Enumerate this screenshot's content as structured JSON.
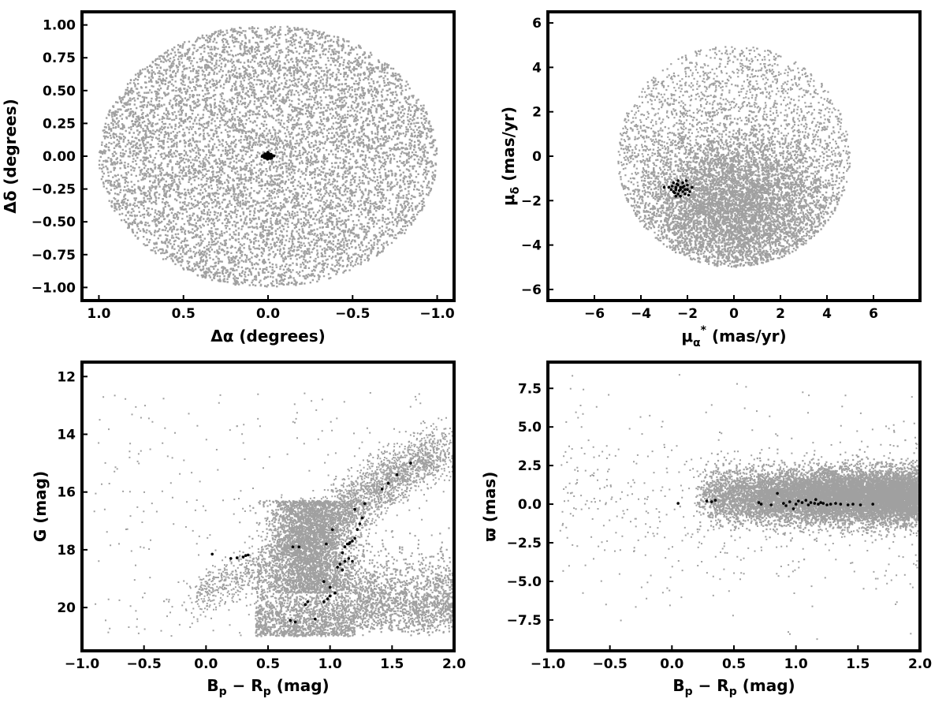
{
  "chart_data": [
    {
      "id": "sky",
      "type": "scatter",
      "xlabel": "Δα (degrees)",
      "ylabel": "Δδ (degrees)",
      "xlim": [
        1.1,
        -1.1
      ],
      "ylim": [
        -1.1,
        1.1
      ],
      "x_reversed": true,
      "xticks": [
        1.0,
        0.5,
        0.0,
        -0.5,
        -1.0
      ],
      "xtick_labels": [
        "1.0",
        "0.5",
        "0.0",
        "−0.5",
        "−1.0"
      ],
      "yticks": [
        1.0,
        0.75,
        0.5,
        0.25,
        0.0,
        -0.25,
        -0.5,
        -0.75,
        -1.0
      ],
      "ytick_labels": [
        "1.00",
        "0.75",
        "0.50",
        "0.25",
        "0.00",
        "−0.25",
        "−0.50",
        "−0.75",
        "−1.00"
      ],
      "series": [
        {
          "color": "#a0a0a0",
          "distribution": "uniform disk",
          "center": [
            0,
            0
          ],
          "radius": 1.0
        },
        {
          "color": "#000000",
          "points": [
            [
              0.0,
              0.0
            ],
            [
              0.01,
              0.005
            ],
            [
              -0.01,
              0.008
            ],
            [
              0.005,
              -0.01
            ],
            [
              -0.008,
              -0.006
            ],
            [
              0.015,
              0.01
            ],
            [
              -0.015,
              0.012
            ],
            [
              0.02,
              -0.005
            ],
            [
              -0.02,
              -0.008
            ],
            [
              0.008,
              0.018
            ],
            [
              -0.005,
              0.02
            ],
            [
              0.012,
              -0.015
            ],
            [
              -0.012,
              -0.018
            ],
            [
              0.025,
              0.002
            ],
            [
              -0.025,
              0.0
            ],
            [
              0.0,
              0.025
            ],
            [
              0.003,
              -0.022
            ],
            [
              0.018,
              0.018
            ],
            [
              -0.018,
              0.015
            ],
            [
              0.022,
              -0.012
            ],
            [
              -0.022,
              -0.014
            ],
            [
              0.03,
              0.005
            ],
            [
              -0.03,
              0.004
            ],
            [
              0.006,
              0.006
            ],
            [
              -0.004,
              -0.003
            ],
            [
              0.01,
              -0.002
            ],
            [
              -0.002,
              0.012
            ],
            [
              0.014,
              0.002
            ],
            [
              -0.014,
              -0.002
            ],
            [
              0.035,
              -0.002
            ],
            [
              -0.035,
              0.002
            ],
            [
              0.001,
              0.03
            ]
          ]
        }
      ]
    },
    {
      "id": "pm",
      "type": "scatter",
      "xlabel": "μα* (mas/yr)",
      "ylabel": "μδ (mas/yr)",
      "xlim": [
        -8,
        8
      ],
      "ylim": [
        -6.5,
        6.5
      ],
      "xticks": [
        -6,
        -4,
        -2,
        0,
        2,
        4,
        6
      ],
      "xtick_labels": [
        "−6",
        "−4",
        "−2",
        "0",
        "2",
        "4",
        "6"
      ],
      "yticks": [
        6,
        4,
        2,
        0,
        -2,
        -4,
        -6
      ],
      "ytick_labels": [
        "6",
        "4",
        "2",
        "0",
        "−2",
        "−4",
        "−6"
      ],
      "series": [
        {
          "color": "#a0a0a0",
          "distribution": "disk centered at (0,0) radius 5, dense toward negative μδ"
        },
        {
          "color": "#000000",
          "points": [
            [
              -2.3,
              -1.5
            ],
            [
              -2.4,
              -1.3
            ],
            [
              -2.2,
              -1.6
            ],
            [
              -2.5,
              -1.4
            ],
            [
              -2.1,
              -1.5
            ],
            [
              -2.6,
              -1.6
            ],
            [
              -2.3,
              -1.8
            ],
            [
              -2.0,
              -1.3
            ],
            [
              -2.4,
              -1.1
            ],
            [
              -2.7,
              -1.5
            ],
            [
              -2.2,
              -1.2
            ],
            [
              -1.9,
              -1.6
            ],
            [
              -2.5,
              -1.8
            ],
            [
              -2.8,
              -1.4
            ],
            [
              -2.3,
              -1.4
            ],
            [
              -2.1,
              -1.7
            ],
            [
              -2.6,
              -1.2
            ],
            [
              -2.0,
              -1.5
            ],
            [
              -2.4,
              -1.7
            ],
            [
              -2.2,
              -1.4
            ],
            [
              -3.0,
              -1.4
            ],
            [
              -1.8,
              -1.4
            ],
            [
              -2.5,
              -1.5
            ],
            [
              -2.35,
              -1.55
            ],
            [
              -2.15,
              -1.35
            ],
            [
              -2.45,
              -1.25
            ],
            [
              -2.05,
              -1.1
            ],
            [
              -2.55,
              -1.65
            ],
            [
              -1.95,
              -1.75
            ],
            [
              -2.65,
              -1.35
            ]
          ]
        }
      ]
    },
    {
      "id": "cmd",
      "type": "scatter",
      "xlabel": "Bp − Rp (mag)",
      "ylabel": "G (mag)",
      "xlim": [
        -1.0,
        2.0
      ],
      "ylim": [
        21.5,
        11.5
      ],
      "y_reversed": true,
      "xticks": [
        -1.0,
        -0.5,
        0.0,
        0.5,
        1.0,
        1.5,
        2.0
      ],
      "xtick_labels": [
        "−1.0",
        "−0.5",
        "0.0",
        "0.5",
        "1.0",
        "1.5",
        "2.0"
      ],
      "yticks": [
        20,
        18,
        16,
        14,
        12
      ],
      "ytick_labels": [
        "20",
        "18",
        "16",
        "14",
        "12"
      ],
      "series": [
        {
          "color": "#a0a0a0",
          "distribution": "field stars, dense band near G=19-21 for Bp-Rp 0.5-2.0, sparse branch to bright mags"
        },
        {
          "color": "#000000",
          "points": [
            [
              0.05,
              18.15
            ],
            [
              0.2,
              18.3
            ],
            [
              0.25,
              18.28
            ],
            [
              0.3,
              18.25
            ],
            [
              0.32,
              18.2
            ],
            [
              0.34,
              18.18
            ],
            [
              0.7,
              17.9
            ],
            [
              0.75,
              17.9
            ],
            [
              0.68,
              20.45
            ],
            [
              0.72,
              20.5
            ],
            [
              0.88,
              20.4
            ],
            [
              0.8,
              19.9
            ],
            [
              0.82,
              19.8
            ],
            [
              0.95,
              19.8
            ],
            [
              0.98,
              19.7
            ],
            [
              1.0,
              19.6
            ],
            [
              1.04,
              19.5
            ],
            [
              0.95,
              19.1
            ],
            [
              1.0,
              19.3
            ],
            [
              1.06,
              18.6
            ],
            [
              1.1,
              18.7
            ],
            [
              1.08,
              18.5
            ],
            [
              1.12,
              18.4
            ],
            [
              1.15,
              18.3
            ],
            [
              1.18,
              18.4
            ],
            [
              1.1,
              18.1
            ],
            [
              1.12,
              17.9
            ],
            [
              1.14,
              17.8
            ],
            [
              1.16,
              17.75
            ],
            [
              1.18,
              17.7
            ],
            [
              1.2,
              17.6
            ],
            [
              1.22,
              17.3
            ],
            [
              1.24,
              17.1
            ],
            [
              1.26,
              16.9
            ],
            [
              1.28,
              16.4
            ],
            [
              1.2,
              16.6
            ],
            [
              1.15,
              17.8
            ],
            [
              1.02,
              17.3
            ],
            [
              0.97,
              17.8
            ],
            [
              1.42,
              15.9
            ],
            [
              1.47,
              15.7
            ],
            [
              1.54,
              15.4
            ],
            [
              1.65,
              15.0
            ]
          ]
        }
      ]
    },
    {
      "id": "parallax",
      "type": "scatter",
      "xlabel": "Bp − Rp (mag)",
      "ylabel": "ϖ (mas)",
      "xlim": [
        -1.0,
        2.0
      ],
      "ylim": [
        -9.5,
        9.2
      ],
      "xticks": [
        -1.0,
        -0.5,
        0.0,
        0.5,
        1.0,
        1.5,
        2.0
      ],
      "xtick_labels": [
        "−1.0",
        "−0.5",
        "0.0",
        "0.5",
        "1.0",
        "1.5",
        "2.0"
      ],
      "yticks": [
        7.5,
        5.0,
        2.5,
        0.0,
        -2.5,
        -5.0,
        -7.5
      ],
      "ytick_labels": [
        "7.5",
        "5.0",
        "2.5",
        "0.0",
        "−2.5",
        "−5.0",
        "−7.5"
      ],
      "series": [
        {
          "color": "#a0a0a0",
          "distribution": "field stars, parallax band centered near 0.5 mas for Bp-Rp 0.3-2.0"
        },
        {
          "color": "#000000",
          "points": [
            [
              0.05,
              0.05
            ],
            [
              0.28,
              0.2
            ],
            [
              0.32,
              0.15
            ],
            [
              0.35,
              0.25
            ],
            [
              0.7,
              0.1
            ],
            [
              0.72,
              0.0
            ],
            [
              0.8,
              -0.05
            ],
            [
              0.85,
              0.7
            ],
            [
              0.9,
              0.05
            ],
            [
              0.92,
              -0.1
            ],
            [
              0.95,
              0.15
            ],
            [
              1.0,
              0.0
            ],
            [
              1.02,
              0.2
            ],
            [
              1.05,
              0.1
            ],
            [
              1.08,
              0.25
            ],
            [
              1.1,
              -0.05
            ],
            [
              1.12,
              0.1
            ],
            [
              1.15,
              0.05
            ],
            [
              1.18,
              0.0
            ],
            [
              1.2,
              0.1
            ],
            [
              1.22,
              0.05
            ],
            [
              1.25,
              -0.05
            ],
            [
              1.28,
              0.0
            ],
            [
              1.32,
              0.05
            ],
            [
              1.36,
              0.0
            ],
            [
              1.42,
              -0.05
            ],
            [
              1.46,
              0.0
            ],
            [
              1.52,
              -0.05
            ],
            [
              1.62,
              0.0
            ],
            [
              0.98,
              -0.3
            ],
            [
              1.16,
              0.3
            ]
          ]
        }
      ]
    }
  ]
}
